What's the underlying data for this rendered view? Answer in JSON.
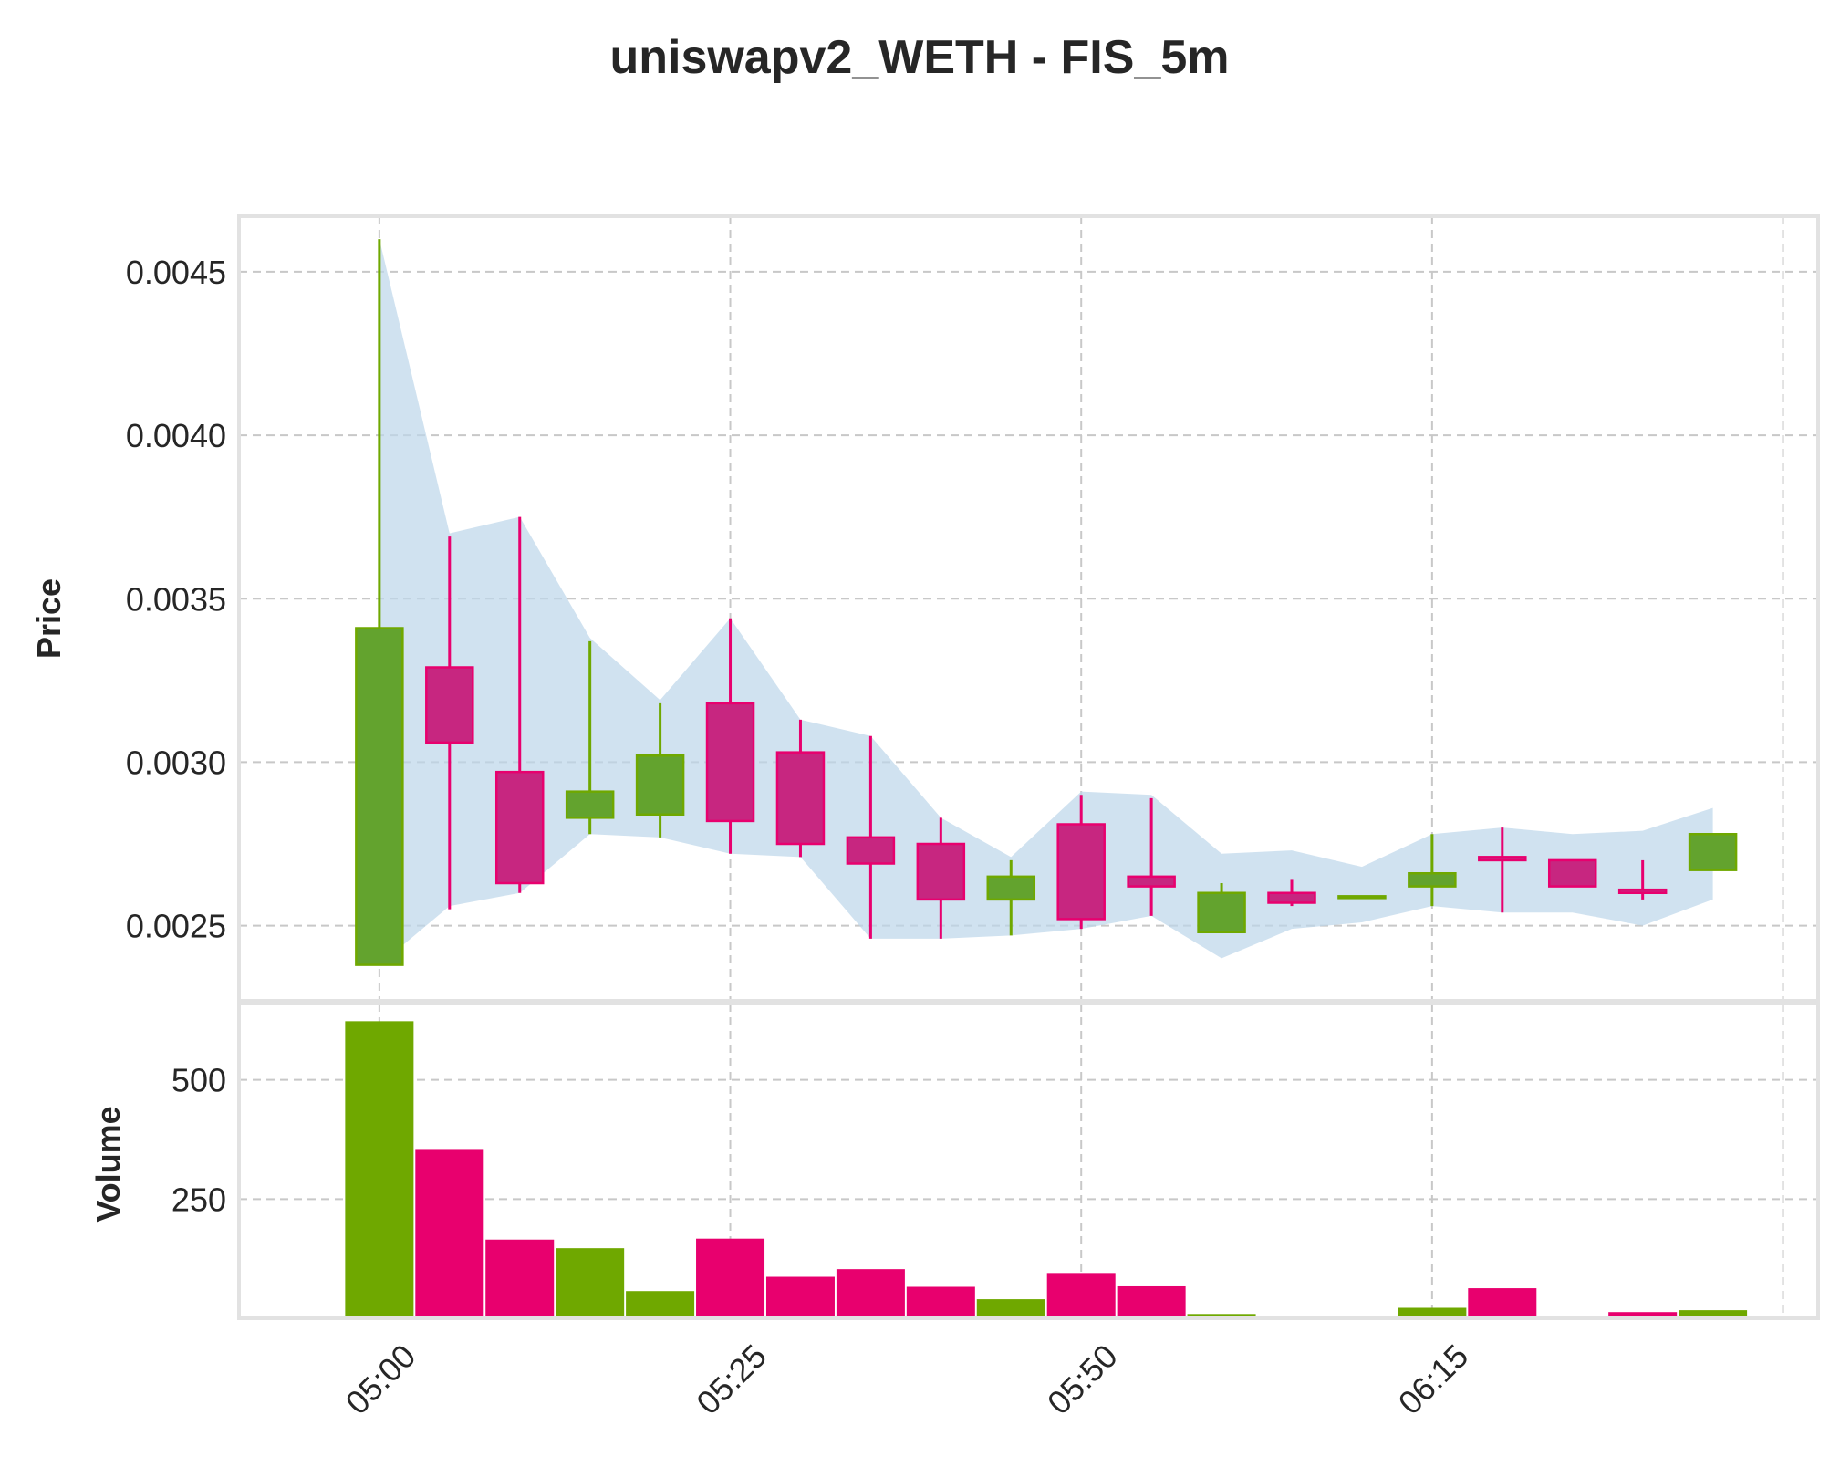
{
  "chart_data": {
    "type": "candlestick",
    "title": "uniswapv2_WETH - FIS_5m",
    "price_panel": {
      "ylabel": "Price",
      "ylim": [
        0.00227,
        0.00467
      ],
      "yticks": [
        0.0025,
        0.003,
        0.0035,
        0.004,
        0.0045
      ],
      "ytick_labels": [
        "0.0025",
        "0.0030",
        "0.0035",
        "0.0040",
        "0.0045"
      ]
    },
    "volume_panel": {
      "ylabel": "Volume",
      "ylim": [
        0,
        660
      ],
      "yticks": [
        250,
        500
      ],
      "ytick_labels": [
        "250",
        "500"
      ]
    },
    "x_index_range": [
      -2,
      20.5
    ],
    "x_ticks": [
      0,
      5,
      10,
      15,
      20
    ],
    "x_tick_labels": [
      "05:00",
      "05:25",
      "05:50",
      "06:15",
      ""
    ],
    "series": [
      {
        "name": "open",
        "values": [
          0.00238,
          0.00329,
          0.00297,
          0.00283,
          0.00284,
          0.00318,
          0.00303,
          0.00277,
          0.00275,
          0.00258,
          0.00281,
          0.00265,
          0.00248,
          0.0026,
          0.00259,
          0.00262,
          0.00271,
          0.0027,
          0.00261,
          0.00267
        ]
      },
      {
        "name": "high",
        "values": [
          0.0046,
          0.00369,
          0.00375,
          0.00337,
          0.00318,
          0.00344,
          0.00313,
          0.00308,
          0.00283,
          0.0027,
          0.0029,
          0.00289,
          0.00263,
          0.00264,
          0.00259,
          0.00278,
          0.0028,
          0.0027,
          0.0027,
          0.00278
        ]
      },
      {
        "name": "low",
        "values": [
          0.00238,
          0.00255,
          0.0026,
          0.00278,
          0.00277,
          0.00272,
          0.00271,
          0.00246,
          0.00246,
          0.00247,
          0.00249,
          0.00253,
          0.00248,
          0.00256,
          0.00259,
          0.00256,
          0.00254,
          0.00262,
          0.00258,
          0.00267
        ]
      },
      {
        "name": "close",
        "values": [
          0.00341,
          0.00306,
          0.00263,
          0.00291,
          0.00302,
          0.00282,
          0.00275,
          0.00269,
          0.00258,
          0.00265,
          0.00252,
          0.00262,
          0.0026,
          0.00257,
          0.00259,
          0.00266,
          0.0027,
          0.00262,
          0.0026,
          0.00278
        ]
      },
      {
        "name": "volume",
        "values": [
          623,
          355,
          165,
          147,
          57,
          167,
          87,
          103,
          66,
          40,
          95,
          67,
          9,
          5,
          0,
          22,
          63,
          3,
          13,
          17
        ]
      }
    ],
    "band": {
      "upper": [
        0.0046,
        0.0037,
        0.00375,
        0.00338,
        0.00319,
        0.00344,
        0.00313,
        0.00308,
        0.00283,
        0.00271,
        0.00291,
        0.0029,
        0.00272,
        0.00273,
        0.00268,
        0.00278,
        0.0028,
        0.00278,
        0.00279,
        0.00286
      ],
      "lower": [
        0.00238,
        0.00256,
        0.0026,
        0.00278,
        0.00277,
        0.00272,
        0.00271,
        0.00246,
        0.00246,
        0.00247,
        0.00249,
        0.00253,
        0.0024,
        0.00249,
        0.00251,
        0.00256,
        0.00254,
        0.00254,
        0.0025,
        0.00258
      ]
    },
    "colors": {
      "up": "#6fa800",
      "down": "#e8006e",
      "up_body": "#63a32e",
      "down_body": "#c72680",
      "band": "#bcd6ea",
      "grid": "#c8c8c8",
      "spine": "#e2e2e2"
    }
  }
}
